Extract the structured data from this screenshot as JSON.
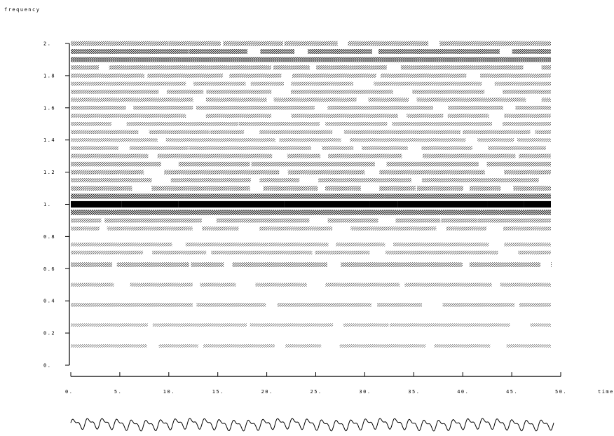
{
  "chart_data": {
    "type": "heatmap",
    "title": "",
    "ylabel": "frequency",
    "xlabel": "time",
    "xlim": [
      0,
      50
    ],
    "ylim": [
      0,
      2
    ],
    "x_ticks": [
      0,
      5,
      10,
      15,
      20,
      25,
      30,
      35,
      40,
      45,
      50
    ],
    "x_tick_labels": [
      "0.",
      "5.",
      "10.",
      "15.",
      "20.",
      "25.",
      "30.",
      "35.",
      "40.",
      "45.",
      "50."
    ],
    "y_ticks": [
      0,
      0.2,
      0.4,
      0.6,
      0.8,
      1,
      1.2,
      1.4,
      1.6,
      1.8,
      2
    ],
    "y_tick_labels": [
      "0.",
      "0.2",
      "0.4",
      "0.6",
      "0.8",
      "1.",
      "1.2",
      "1.4",
      "1.6",
      "1.8",
      "2."
    ],
    "data_time_range": [
      0,
      49
    ],
    "frequency_bands": [
      {
        "freq": 0.12,
        "intensity": 0.2
      },
      {
        "freq": 0.25,
        "intensity": 0.2
      },
      {
        "freq": 0.375,
        "intensity": 0.3
      },
      {
        "freq": 0.5,
        "intensity": 0.3
      },
      {
        "freq": 0.625,
        "intensity": 0.55
      },
      {
        "freq": 0.7,
        "intensity": 0.3
      },
      {
        "freq": 0.75,
        "intensity": 0.3
      },
      {
        "freq": 0.85,
        "intensity": 0.35
      },
      {
        "freq": 0.9,
        "intensity": 0.45
      },
      {
        "freq": 0.95,
        "intensity": 0.7
      },
      {
        "freq": 1.0,
        "intensity": 1.0
      },
      {
        "freq": 1.05,
        "intensity": 0.65
      },
      {
        "freq": 1.1,
        "intensity": 0.55
      },
      {
        "freq": 1.15,
        "intensity": 0.45
      },
      {
        "freq": 1.2,
        "intensity": 0.5
      },
      {
        "freq": 1.25,
        "intensity": 0.55
      },
      {
        "freq": 1.3,
        "intensity": 0.45
      },
      {
        "freq": 1.35,
        "intensity": 0.35
      },
      {
        "freq": 1.4,
        "intensity": 0.3
      },
      {
        "freq": 1.45,
        "intensity": 0.35
      },
      {
        "freq": 1.5,
        "intensity": 0.35
      },
      {
        "freq": 1.55,
        "intensity": 0.35
      },
      {
        "freq": 1.6,
        "intensity": 0.4
      },
      {
        "freq": 1.65,
        "intensity": 0.4
      },
      {
        "freq": 1.7,
        "intensity": 0.4
      },
      {
        "freq": 1.75,
        "intensity": 0.35
      },
      {
        "freq": 1.8,
        "intensity": 0.4
      },
      {
        "freq": 1.85,
        "intensity": 0.5
      },
      {
        "freq": 1.9,
        "intensity": 0.65
      },
      {
        "freq": 1.95,
        "intensity": 0.6
      },
      {
        "freq": 2.0,
        "intensity": 0.55
      }
    ],
    "signal": {
      "cycles": 33
    }
  }
}
